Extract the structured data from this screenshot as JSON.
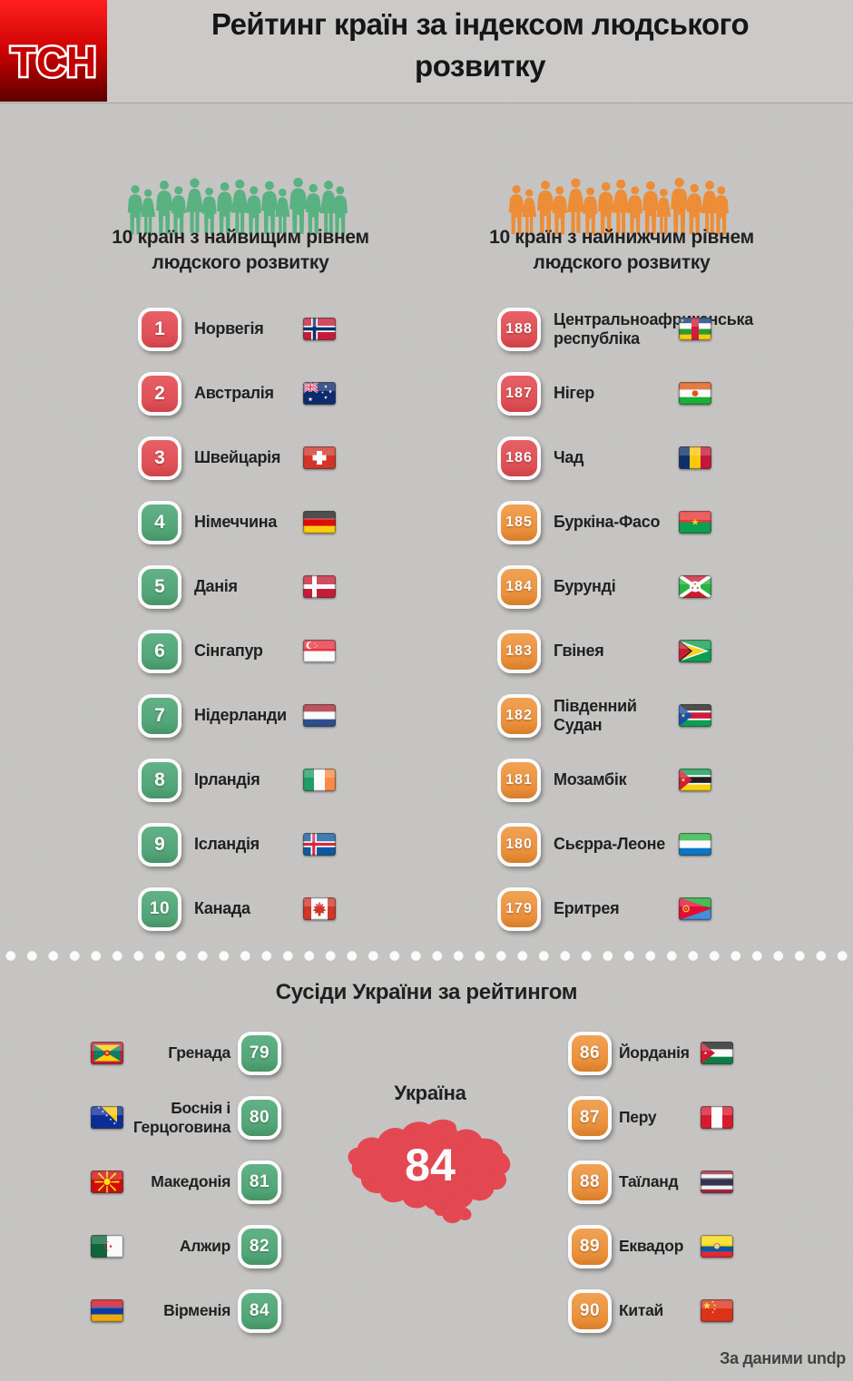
{
  "header": {
    "logo_text": "ТСН",
    "title": "Рейтинг країн за індексом людського розвитку"
  },
  "top_section": {
    "left": {
      "heading_line1": "10 країн з найвищим рівнем",
      "heading_line2": "людского розвитку",
      "items": [
        {
          "rank": "1",
          "country": "Норвегія",
          "flag": "norway",
          "badge": "red"
        },
        {
          "rank": "2",
          "country": "Австралія",
          "flag": "australia",
          "badge": "red"
        },
        {
          "rank": "3",
          "country": "Швейцарія",
          "flag": "switzerland",
          "badge": "red"
        },
        {
          "rank": "4",
          "country": "Німеччина",
          "flag": "germany",
          "badge": "green"
        },
        {
          "rank": "5",
          "country": "Данія",
          "flag": "denmark",
          "badge": "green"
        },
        {
          "rank": "6",
          "country": "Сінгапур",
          "flag": "singapore",
          "badge": "green"
        },
        {
          "rank": "7",
          "country": "Нідерланди",
          "flag": "netherlands",
          "badge": "green"
        },
        {
          "rank": "8",
          "country": "Ірландія",
          "flag": "ireland",
          "badge": "green"
        },
        {
          "rank": "9",
          "country": "Ісландія",
          "flag": "iceland",
          "badge": "green"
        },
        {
          "rank": "10",
          "country": "Канада",
          "flag": "canada",
          "badge": "green"
        }
      ]
    },
    "right": {
      "heading_line1": "10 країн з найнижчим рівнем",
      "heading_line2": "людского розвитку",
      "items": [
        {
          "rank": "188",
          "country": "Центральноафриканська республіка",
          "flag": "central-african-republic",
          "badge": "red"
        },
        {
          "rank": "187",
          "country": "Нігер",
          "flag": "niger",
          "badge": "red"
        },
        {
          "rank": "186",
          "country": "Чад",
          "flag": "chad",
          "badge": "red"
        },
        {
          "rank": "185",
          "country": "Буркіна‑Фасо",
          "flag": "burkina-faso",
          "badge": "orange"
        },
        {
          "rank": "184",
          "country": "Бурунді",
          "flag": "burundi",
          "badge": "orange"
        },
        {
          "rank": "183",
          "country": "Гвінея",
          "flag": "guinea",
          "badge": "orange"
        },
        {
          "rank": "182",
          "country": "Південний Судан",
          "flag": "south-sudan",
          "badge": "orange"
        },
        {
          "rank": "181",
          "country": "Мозамбік",
          "flag": "mozambique",
          "badge": "orange"
        },
        {
          "rank": "180",
          "country": "Сьєрра‑Леоне",
          "flag": "sierra-leone",
          "badge": "orange"
        },
        {
          "rank": "179",
          "country": "Еритрея",
          "flag": "eritrea",
          "badge": "orange"
        }
      ]
    }
  },
  "neighbors": {
    "heading": "Сусіди України за рейтингом",
    "left_items": [
      {
        "rank": "79",
        "country": "Гренада",
        "flag": "grenada",
        "badge": "green"
      },
      {
        "rank": "80",
        "country": "Боснія і Герцоговина",
        "flag": "bosnia-and-herzegovina",
        "badge": "green"
      },
      {
        "rank": "81",
        "country": "Македонія",
        "flag": "macedonia",
        "badge": "green"
      },
      {
        "rank": "82",
        "country": "Алжир",
        "flag": "algeria",
        "badge": "green"
      },
      {
        "rank": "84",
        "country": "Вірменія",
        "flag": "armenia",
        "badge": "green"
      }
    ],
    "ukraine": {
      "label": "Україна",
      "rank": "84"
    },
    "right_items": [
      {
        "rank": "86",
        "country": "Йорданія",
        "flag": "jordan",
        "badge": "orange"
      },
      {
        "rank": "87",
        "country": "Перу",
        "flag": "peru",
        "badge": "orange"
      },
      {
        "rank": "88",
        "country": "Таїланд",
        "flag": "thailand",
        "badge": "orange"
      },
      {
        "rank": "89",
        "country": "Еквадор",
        "flag": "ecuador",
        "badge": "orange"
      },
      {
        "rank": "90",
        "country": "Китай",
        "flag": "china",
        "badge": "orange"
      }
    ]
  },
  "footer": {
    "attribution": "За даними undp"
  },
  "colors": {
    "badge_red": "#e2484f",
    "badge_green": "#4ba473",
    "badge_orange": "#ee8d33",
    "crowd_green": "#52b17e",
    "crowd_orange": "#f08a2e",
    "ukraine_map": "#e6404a",
    "logo_red": "#d40000"
  }
}
